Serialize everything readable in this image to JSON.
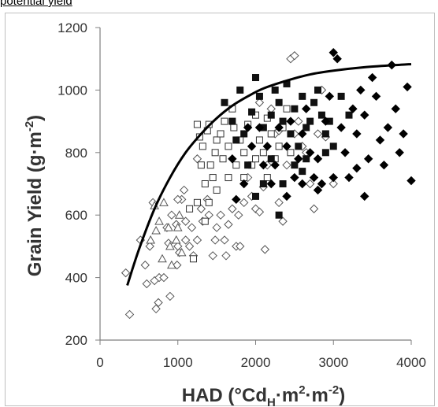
{
  "header": {
    "text": "potential yield"
  },
  "chart_data": {
    "type": "scatter",
    "title": "",
    "xlabel": "HAD (°Cd",
    "xlabel_sub": "H",
    "xlabel_tail": "·m",
    "xlabel_sup": "2",
    "xlabel_end": "·m",
    "xlabel_sup2": "-2",
    "xlabel_close": ")",
    "ylabel": "Grain Yield (g·m",
    "ylabel_sup": "-2",
    "ylabel_close": ")",
    "xlim": [
      0,
      4000
    ],
    "ylim": [
      200,
      1200
    ],
    "xticks": [
      "0",
      "1000",
      "2000",
      "3000",
      "4000"
    ],
    "xtick_values": [
      0,
      1000,
      2000,
      3000,
      4000
    ],
    "yticks": [
      "200",
      "400",
      "600",
      "800",
      "1000",
      "1200"
    ],
    "ytick_values": [
      200,
      400,
      600,
      800,
      1000,
      1200
    ],
    "grid": false,
    "legend": "none",
    "series": [
      {
        "marker": "open-diamond",
        "color": "#555555",
        "points": [
          [
            330,
            415
          ],
          [
            380,
            282
          ],
          [
            520,
            520
          ],
          [
            580,
            440
          ],
          [
            600,
            380
          ],
          [
            640,
            500
          ],
          [
            680,
            640
          ],
          [
            700,
            390
          ],
          [
            720,
            300
          ],
          [
            750,
            320
          ],
          [
            760,
            400
          ],
          [
            820,
            400
          ],
          [
            860,
            560
          ],
          [
            880,
            510
          ],
          [
            900,
            340
          ],
          [
            920,
            600
          ],
          [
            980,
            570
          ],
          [
            990,
            440
          ],
          [
            1000,
            500
          ],
          [
            1020,
            480
          ],
          [
            1050,
            650
          ],
          [
            1080,
            680
          ],
          [
            1100,
            520
          ],
          [
            1150,
            500
          ],
          [
            1180,
            560
          ],
          [
            1200,
            470
          ],
          [
            1250,
            520
          ],
          [
            1300,
            620
          ],
          [
            1320,
            580
          ],
          [
            1380,
            650
          ],
          [
            1400,
            600
          ],
          [
            1450,
            470
          ],
          [
            1480,
            520
          ],
          [
            1500,
            560
          ],
          [
            1550,
            600
          ],
          [
            1600,
            520
          ],
          [
            1620,
            470
          ],
          [
            1650,
            570
          ],
          [
            1700,
            620
          ],
          [
            1750,
            500
          ],
          [
            1780,
            600
          ],
          [
            1800,
            500
          ],
          [
            1850,
            640
          ],
          [
            1900,
            720
          ],
          [
            1950,
            660
          ],
          [
            2000,
            620
          ],
          [
            2050,
            610
          ],
          [
            2100,
            690
          ],
          [
            2120,
            490
          ],
          [
            2150,
            760
          ],
          [
            2200,
            940
          ],
          [
            2250,
            860
          ],
          [
            2300,
            640
          ],
          [
            2350,
            580
          ],
          [
            2400,
            760
          ],
          [
            2450,
            1100
          ],
          [
            2500,
            1110
          ],
          [
            2500,
            860
          ],
          [
            2550,
            900
          ],
          [
            2600,
            820
          ],
          [
            2650,
            800
          ],
          [
            2700,
            700
          ],
          [
            2750,
            620
          ],
          [
            2800,
            860
          ],
          [
            2850,
            1000
          ],
          [
            2900,
            850
          ],
          [
            3000,
            700
          ],
          [
            1000,
            650
          ],
          [
            1100,
            580
          ],
          [
            1250,
            780
          ],
          [
            2050,
            960
          ],
          [
            2300,
            870
          ]
        ]
      },
      {
        "marker": "open-triangle",
        "color": "#555555",
        "points": [
          [
            650,
            520
          ],
          [
            700,
            630
          ],
          [
            720,
            550
          ],
          [
            760,
            580
          ],
          [
            800,
            460
          ],
          [
            820,
            640
          ],
          [
            880,
            560
          ],
          [
            900,
            500
          ],
          [
            920,
            440
          ],
          [
            980,
            520
          ],
          [
            1000,
            560
          ],
          [
            1020,
            600
          ],
          [
            1050,
            480
          ]
        ]
      },
      {
        "marker": "open-square",
        "color": "#333333",
        "points": [
          [
            1250,
            890
          ],
          [
            1280,
            850
          ],
          [
            1300,
            760
          ],
          [
            1320,
            820
          ],
          [
            1350,
            700
          ],
          [
            1380,
            870
          ],
          [
            1400,
            890
          ],
          [
            1420,
            760
          ],
          [
            1450,
            720
          ],
          [
            1480,
            800
          ],
          [
            1500,
            840
          ],
          [
            1550,
            860
          ],
          [
            1580,
            780
          ],
          [
            1600,
            900
          ],
          [
            1650,
            820
          ],
          [
            1700,
            940
          ],
          [
            1720,
            880
          ],
          [
            1750,
            760
          ],
          [
            1800,
            840
          ],
          [
            1850,
            800
          ],
          [
            1900,
            890
          ],
          [
            1950,
            760
          ],
          [
            2000,
            920
          ],
          [
            2050,
            840
          ],
          [
            2100,
            800
          ],
          [
            2150,
            910
          ],
          [
            2200,
            860
          ],
          [
            2250,
            780
          ],
          [
            2300,
            820
          ],
          [
            2350,
            880
          ],
          [
            2400,
            940
          ],
          [
            2450,
            800
          ],
          [
            1400,
            640
          ],
          [
            1500,
            680
          ],
          [
            1350,
            580
          ],
          [
            1200,
            460
          ],
          [
            1150,
            620
          ],
          [
            1250,
            640
          ],
          [
            1650,
            720
          ],
          [
            1850,
            720
          ],
          [
            2150,
            720
          ],
          [
            2000,
            780
          ]
        ]
      },
      {
        "marker": "filled-square",
        "color": "#111111",
        "points": [
          [
            1600,
            960
          ],
          [
            1700,
            900
          ],
          [
            1800,
            1000
          ],
          [
            1850,
            860
          ],
          [
            1950,
            930
          ],
          [
            2000,
            1040
          ],
          [
            2050,
            980
          ],
          [
            2100,
            880
          ],
          [
            2200,
            920
          ],
          [
            2250,
            1000
          ],
          [
            2300,
            960
          ],
          [
            2350,
            900
          ],
          [
            2400,
            1020
          ],
          [
            2450,
            860
          ],
          [
            2500,
            940
          ],
          [
            2550,
            820
          ],
          [
            2600,
            980
          ],
          [
            2650,
            880
          ],
          [
            2700,
            900
          ],
          [
            2750,
            960
          ],
          [
            2800,
            1000
          ],
          [
            2850,
            920
          ],
          [
            2900,
            860
          ],
          [
            2950,
            900
          ],
          [
            3000,
            820
          ],
          [
            3100,
            980
          ],
          [
            3200,
            920
          ],
          [
            2350,
            700
          ],
          [
            2500,
            760
          ],
          [
            2600,
            740
          ],
          [
            2200,
            780
          ],
          [
            2100,
            700
          ],
          [
            2000,
            660
          ],
          [
            1900,
            760
          ],
          [
            1750,
            840
          ],
          [
            2300,
            600
          ],
          [
            2650,
            780
          ],
          [
            2900,
            800
          ]
        ]
      },
      {
        "marker": "filled-diamond",
        "color": "#000000",
        "points": [
          [
            1700,
            780
          ],
          [
            1750,
            650
          ],
          [
            1850,
            700
          ],
          [
            1900,
            880
          ],
          [
            1950,
            820
          ],
          [
            2050,
            880
          ],
          [
            2100,
            760
          ],
          [
            2150,
            820
          ],
          [
            2200,
            700
          ],
          [
            2250,
            760
          ],
          [
            2300,
            880
          ],
          [
            2400,
            820
          ],
          [
            2450,
            900
          ],
          [
            2500,
            720
          ],
          [
            2550,
            780
          ],
          [
            2600,
            860
          ],
          [
            2650,
            940
          ],
          [
            2700,
            800
          ],
          [
            2750,
            720
          ],
          [
            2800,
            780
          ],
          [
            2850,
            700
          ],
          [
            2900,
            900
          ],
          [
            2950,
            980
          ],
          [
            3000,
            1120
          ],
          [
            3050,
            1100
          ],
          [
            3100,
            880
          ],
          [
            3150,
            800
          ],
          [
            3200,
            720
          ],
          [
            3250,
            940
          ],
          [
            3300,
            860
          ],
          [
            3350,
            1000
          ],
          [
            3400,
            920
          ],
          [
            3450,
            780
          ],
          [
            3500,
            1040
          ],
          [
            3550,
            980
          ],
          [
            3600,
            840
          ],
          [
            3650,
            760
          ],
          [
            3700,
            880
          ],
          [
            3750,
            1080
          ],
          [
            3800,
            940
          ],
          [
            3850,
            800
          ],
          [
            3900,
            860
          ],
          [
            3950,
            1010
          ],
          [
            4000,
            710
          ],
          [
            3400,
            660
          ],
          [
            3300,
            750
          ],
          [
            3000,
            720
          ],
          [
            2800,
            680
          ],
          [
            2600,
            700
          ],
          [
            2400,
            660
          ]
        ]
      }
    ],
    "curve": {
      "name": "",
      "color": "#000000",
      "points": [
        [
          350,
          375
        ],
        [
          500,
          490
        ],
        [
          700,
          620
        ],
        [
          900,
          720
        ],
        [
          1100,
          800
        ],
        [
          1300,
          860
        ],
        [
          1500,
          910
        ],
        [
          1700,
          950
        ],
        [
          1900,
          980
        ],
        [
          2100,
          1005
        ],
        [
          2400,
          1030
        ],
        [
          2700,
          1050
        ],
        [
          3000,
          1062
        ],
        [
          3400,
          1073
        ],
        [
          3800,
          1080
        ],
        [
          4000,
          1083
        ]
      ]
    }
  }
}
